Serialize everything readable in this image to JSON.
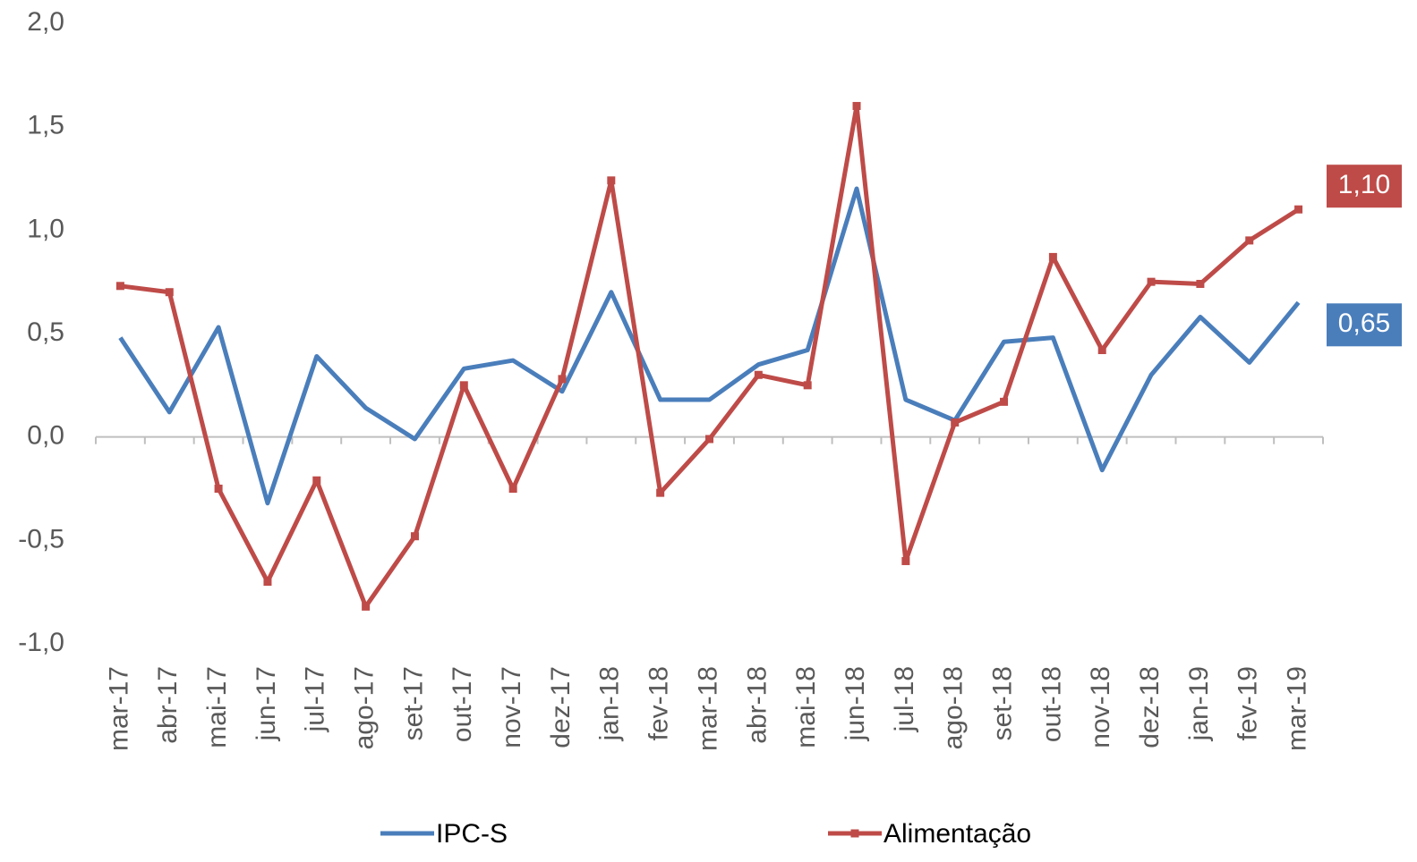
{
  "chart_data": {
    "type": "line",
    "categories": [
      "mar-17",
      "abr-17",
      "mai-17",
      "jun-17",
      "jul-17",
      "ago-17",
      "set-17",
      "out-17",
      "nov-17",
      "dez-17",
      "jan-18",
      "fev-18",
      "mar-18",
      "abr-18",
      "mai-18",
      "jun-18",
      "jul-18",
      "ago-18",
      "set-18",
      "out-18",
      "nov-18",
      "dez-18",
      "jan-19",
      "fev-19",
      "mar-19"
    ],
    "series": [
      {
        "name": "IPC-S",
        "color": "#4a7ebb",
        "marker": "none",
        "values": [
          0.48,
          0.12,
          0.53,
          -0.32,
          0.39,
          0.14,
          -0.01,
          0.33,
          0.37,
          0.22,
          0.7,
          0.18,
          0.18,
          0.35,
          0.42,
          1.2,
          0.18,
          0.08,
          0.46,
          0.48,
          -0.16,
          0.3,
          0.58,
          0.36,
          0.65
        ],
        "value_labels": [
          null,
          null,
          null,
          null,
          null,
          null,
          null,
          null,
          null,
          null,
          null,
          null,
          null,
          null,
          null,
          null,
          null,
          null,
          null,
          null,
          null,
          null,
          null,
          null,
          "0,65"
        ]
      },
      {
        "name": "Alimentação",
        "color": "#be4b48",
        "marker": "square",
        "values": [
          0.73,
          0.7,
          -0.25,
          -0.7,
          -0.21,
          -0.82,
          -0.48,
          0.25,
          -0.25,
          0.28,
          1.24,
          -0.27,
          -0.01,
          0.3,
          0.25,
          1.6,
          -0.6,
          0.07,
          0.17,
          0.87,
          0.42,
          0.75,
          0.74,
          0.95,
          1.1
        ],
        "value_labels": [
          null,
          null,
          null,
          null,
          null,
          null,
          null,
          null,
          null,
          null,
          null,
          null,
          null,
          null,
          null,
          null,
          null,
          null,
          null,
          null,
          null,
          null,
          null,
          null,
          "1,10"
        ]
      }
    ],
    "ylim": [
      -1,
      2
    ],
    "yticks": [
      {
        "value": -1,
        "label": "-1,0"
      },
      {
        "value": -0.5,
        "label": "-0,5"
      },
      {
        "value": 0,
        "label": "0,0"
      },
      {
        "value": 0.5,
        "label": "0,5"
      },
      {
        "value": 1,
        "label": "1,0"
      },
      {
        "value": 1.5,
        "label": "1,5"
      },
      {
        "value": 2,
        "label": "2,0"
      }
    ],
    "grid": false,
    "legend": "bottom"
  }
}
